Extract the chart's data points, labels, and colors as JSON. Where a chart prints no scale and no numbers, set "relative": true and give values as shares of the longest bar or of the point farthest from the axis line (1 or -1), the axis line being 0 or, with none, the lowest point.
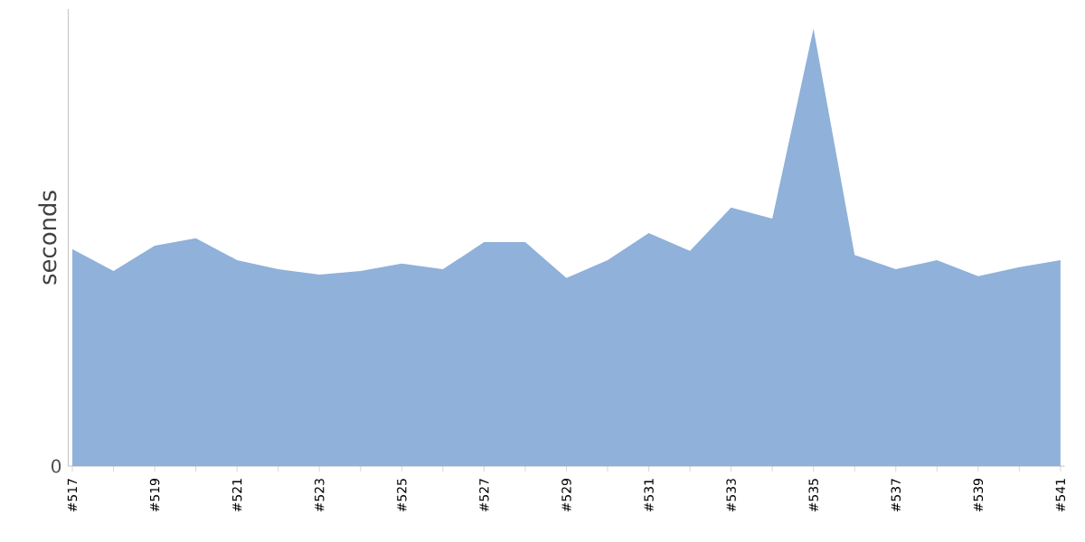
{
  "chart_data": {
    "type": "area",
    "ylabel": "seconds",
    "relative": true,
    "color": "#8fb1da",
    "annotations": [
      "0"
    ],
    "categories": [
      "#517",
      null,
      "#519",
      null,
      "#521",
      null,
      "#523",
      null,
      "#525",
      null,
      "#527",
      null,
      "#529",
      null,
      "#531",
      null,
      "#533",
      null,
      "#535",
      null,
      "#537",
      null,
      "#539",
      null,
      "#541"
    ],
    "values": [
      0.496,
      0.446,
      0.504,
      0.521,
      0.471,
      0.45,
      0.438,
      0.446,
      0.463,
      0.45,
      0.512,
      0.512,
      0.43,
      0.471,
      0.533,
      0.492,
      0.591,
      0.566,
      1,
      0.483,
      0.45,
      0.471,
      0.434,
      0.455,
      0.471
    ]
  }
}
